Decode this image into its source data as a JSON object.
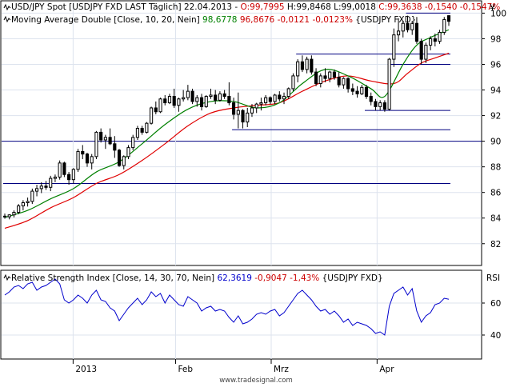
{
  "legend": {
    "main_line1": {
      "prefix": "USD/JPY Spot [USDJPY FXD LAST Täglich] 22.04.2013 - ",
      "open": "O:99,7995",
      "rest": " H:99,8468 L:99,0018 ",
      "close": "C:99,3638 -0,1540 -0,1547%"
    },
    "main_line2": {
      "name": "Moving Average Double [Close, 10, 20, Nein] ",
      "ma_fast": "98,6778",
      "ma_slow": "96,8676",
      "change": "-0,0121 -0,0123%",
      "suffix": " {USDJPY FXD}"
    },
    "rsi": {
      "name": "Relative Strength Index [Close, 14, 30, 70, Nein] ",
      "value": "62,3619",
      "change": "-0,9047 -1,43%",
      "suffix": " {USDJPY FXD}"
    }
  },
  "panel_labels": {
    "currency": "¥",
    "rsi": "RSI"
  },
  "watermark": "www.tradesignal.com",
  "colors": {
    "candle": "#000000",
    "ma_fast": "#008000",
    "ma_slow": "#e00000",
    "rsi": "#0000cc",
    "support_lines": "#000080",
    "grid_dark": "#000080",
    "grid": "#dde3ee",
    "legend_red": "#cc0000",
    "legend_green": "#008000"
  },
  "chart_data": [
    {
      "type": "candlestick",
      "title": "USD/JPY Spot [USDJPY FXD LAST Täglich] 22.04.2013",
      "axis_label": "¥",
      "xlim": [
        "2012-12-13",
        "2013-04-22"
      ],
      "x_ticks": [
        {
          "label": "2013",
          "date": "2013-01-02"
        },
        {
          "label": "Feb",
          "date": "2013-02-01"
        },
        {
          "label": "Mrz",
          "date": "2013-03-01"
        },
        {
          "label": "Apr",
          "date": "2013-04-01"
        }
      ],
      "ylim": [
        80.3,
        100.9
      ],
      "y_ticks": [
        82,
        84,
        86,
        88,
        90,
        92,
        94,
        96,
        98,
        100
      ],
      "grid": true,
      "emphasized_gridline": 90,
      "ohlc": [
        [
          84.15,
          84.35,
          83.95,
          84.1
        ],
        [
          84.1,
          84.3,
          83.9,
          84.25
        ],
        [
          84.25,
          84.6,
          84.05,
          84.45
        ],
        [
          84.45,
          85.1,
          84.3,
          84.95
        ],
        [
          84.95,
          85.4,
          84.6,
          85.2
        ],
        [
          85.2,
          85.6,
          84.9,
          85.3
        ],
        [
          85.3,
          86.3,
          85.1,
          86.1
        ],
        [
          86.1,
          86.6,
          85.7,
          86.3
        ],
        [
          86.3,
          86.8,
          85.95,
          86.5
        ],
        [
          86.5,
          86.9,
          86.2,
          86.4
        ],
        [
          86.4,
          87.3,
          86.1,
          87.1
        ],
        [
          87.1,
          87.4,
          86.8,
          87.2
        ],
        [
          87.2,
          88.5,
          87.0,
          88.3
        ],
        [
          88.3,
          88.4,
          87.2,
          87.4
        ],
        [
          87.4,
          87.6,
          86.6,
          87.0
        ],
        [
          87.0,
          87.9,
          86.7,
          87.8
        ],
        [
          87.8,
          89.4,
          87.6,
          89.2
        ],
        [
          89.2,
          89.7,
          88.6,
          89.0
        ],
        [
          89.0,
          89.1,
          88.0,
          88.3
        ],
        [
          88.3,
          89.0,
          87.8,
          88.8
        ],
        [
          88.8,
          90.8,
          88.6,
          90.7
        ],
        [
          90.7,
          91.0,
          89.9,
          90.1
        ],
        [
          90.1,
          90.5,
          89.4,
          90.3
        ],
        [
          90.3,
          91.0,
          89.7,
          89.8
        ],
        [
          89.8,
          90.4,
          88.7,
          89.3
        ],
        [
          89.3,
          89.4,
          88.0,
          88.1
        ],
        [
          88.1,
          88.9,
          87.8,
          88.8
        ],
        [
          88.8,
          89.7,
          88.6,
          89.5
        ],
        [
          89.5,
          90.5,
          89.3,
          90.3
        ],
        [
          90.3,
          91.2,
          90.1,
          91.0
        ],
        [
          91.0,
          91.2,
          90.5,
          90.7
        ],
        [
          90.7,
          91.5,
          90.6,
          91.4
        ],
        [
          91.4,
          92.7,
          91.3,
          92.6
        ],
        [
          92.6,
          93.1,
          92.1,
          92.3
        ],
        [
          92.3,
          93.4,
          92.2,
          93.3
        ],
        [
          93.3,
          93.6,
          92.8,
          93.0
        ],
        [
          93.0,
          93.7,
          92.9,
          93.5
        ],
        [
          93.5,
          94.1,
          92.6,
          92.8
        ],
        [
          92.8,
          93.4,
          92.3,
          93.3
        ],
        [
          93.3,
          94.0,
          93.1,
          93.4
        ],
        [
          93.4,
          94.4,
          93.2,
          93.9
        ],
        [
          93.9,
          94.1,
          92.9,
          93.1
        ],
        [
          93.1,
          93.6,
          92.7,
          93.4
        ],
        [
          93.4,
          93.7,
          92.4,
          92.7
        ],
        [
          92.7,
          93.6,
          92.6,
          93.5
        ],
        [
          93.5,
          94.1,
          93.3,
          93.6
        ],
        [
          93.6,
          94.0,
          92.9,
          93.2
        ],
        [
          93.2,
          93.9,
          93.1,
          93.7
        ],
        [
          93.7,
          94.0,
          93.3,
          93.5
        ],
        [
          93.5,
          94.6,
          92.8,
          93.0
        ],
        [
          93.0,
          93.4,
          91.7,
          92.1
        ],
        [
          92.1,
          93.8,
          91.0,
          92.4
        ],
        [
          92.4,
          92.5,
          91.0,
          91.5
        ],
        [
          91.5,
          92.6,
          91.1,
          92.2
        ],
        [
          92.2,
          92.9,
          91.9,
          92.6
        ],
        [
          92.6,
          93.0,
          92.2,
          92.9
        ],
        [
          92.9,
          93.4,
          92.4,
          93.0
        ],
        [
          93.0,
          93.6,
          92.8,
          93.4
        ],
        [
          93.4,
          93.5,
          92.9,
          93.1
        ],
        [
          93.1,
          93.7,
          92.9,
          93.6
        ],
        [
          93.6,
          93.9,
          93.1,
          93.3
        ],
        [
          93.3,
          93.8,
          92.9,
          93.5
        ],
        [
          93.5,
          94.2,
          93.3,
          94.1
        ],
        [
          94.1,
          95.3,
          93.9,
          95.1
        ],
        [
          95.1,
          96.4,
          94.6,
          96.2
        ],
        [
          96.2,
          96.7,
          95.4,
          95.6
        ],
        [
          95.6,
          96.6,
          95.3,
          96.4
        ],
        [
          96.4,
          96.7,
          95.2,
          95.4
        ],
        [
          95.4,
          95.7,
          94.3,
          94.5
        ],
        [
          94.5,
          95.3,
          94.2,
          95.1
        ],
        [
          95.1,
          95.7,
          94.6,
          94.9
        ],
        [
          94.9,
          95.5,
          94.6,
          95.4
        ],
        [
          95.4,
          95.6,
          94.8,
          95.0
        ],
        [
          95.0,
          95.4,
          94.2,
          94.4
        ],
        [
          94.4,
          95.0,
          94.1,
          94.9
        ],
        [
          94.9,
          95.0,
          93.8,
          94.1
        ],
        [
          94.1,
          94.5,
          93.6,
          93.9
        ],
        [
          93.9,
          94.3,
          93.4,
          93.7
        ],
        [
          93.7,
          94.4,
          93.6,
          94.2
        ],
        [
          94.2,
          94.4,
          93.3,
          93.5
        ],
        [
          93.5,
          93.8,
          92.8,
          93.1
        ],
        [
          93.1,
          93.3,
          92.4,
          92.7
        ],
        [
          92.7,
          93.2,
          92.4,
          93.0
        ],
        [
          93.0,
          93.2,
          92.3,
          92.5
        ],
        [
          92.5,
          96.5,
          92.4,
          96.4
        ],
        [
          96.4,
          98.8,
          95.8,
          98.3
        ],
        [
          98.3,
          99.6,
          97.8,
          98.6
        ],
        [
          98.6,
          99.4,
          98.1,
          99.2
        ],
        [
          99.2,
          99.8,
          98.5,
          98.7
        ],
        [
          98.7,
          99.4,
          98.3,
          99.2
        ],
        [
          99.2,
          99.7,
          97.6,
          97.8
        ],
        [
          97.8,
          98.0,
          96.0,
          96.4
        ],
        [
          96.4,
          97.7,
          96.1,
          97.5
        ],
        [
          97.5,
          98.2,
          97.1,
          98.0
        ],
        [
          98.0,
          98.4,
          97.4,
          97.8
        ],
        [
          97.8,
          98.7,
          97.6,
          98.5
        ],
        [
          98.5,
          99.7,
          98.3,
          99.5
        ],
        [
          99.8,
          99.85,
          99.0,
          99.36
        ]
      ],
      "ma10": [
        [
          0,
          84.05
        ],
        [
          5,
          84.6
        ],
        [
          10,
          85.5
        ],
        [
          15,
          86.3
        ],
        [
          20,
          87.6
        ],
        [
          25,
          88.4
        ],
        [
          30,
          89.8
        ],
        [
          35,
          91.3
        ],
        [
          40,
          92.5
        ],
        [
          45,
          93.1
        ],
        [
          50,
          93.1
        ],
        [
          55,
          92.6
        ],
        [
          60,
          93.0
        ],
        [
          65,
          94.5
        ],
        [
          70,
          95.6
        ],
        [
          75,
          95.1
        ],
        [
          80,
          94.1
        ],
        [
          83,
          93.5
        ],
        [
          87,
          96.0
        ],
        [
          90,
          97.5
        ],
        [
          93,
          98.1
        ],
        [
          97,
          98.7
        ]
      ],
      "ma20": [
        [
          0,
          83.2
        ],
        [
          5,
          83.8
        ],
        [
          10,
          84.8
        ],
        [
          15,
          85.6
        ],
        [
          20,
          86.7
        ],
        [
          25,
          87.4
        ],
        [
          30,
          88.5
        ],
        [
          35,
          89.8
        ],
        [
          40,
          91.2
        ],
        [
          45,
          92.2
        ],
        [
          50,
          92.6
        ],
        [
          55,
          92.8
        ],
        [
          60,
          93.0
        ],
        [
          65,
          93.9
        ],
        [
          70,
          94.7
        ],
        [
          75,
          95.1
        ],
        [
          80,
          94.7
        ],
        [
          85,
          94.5
        ],
        [
          88,
          95.3
        ],
        [
          91,
          96.1
        ],
        [
          94,
          96.5
        ],
        [
          97,
          96.87
        ]
      ],
      "support_lines": [
        {
          "value": 100.0,
          "from": 88,
          "to": 97
        },
        {
          "value": 96.8,
          "from": 64,
          "to": 97
        },
        {
          "value": 96.0,
          "from": 84,
          "to": 97
        },
        {
          "value": 92.4,
          "from": 79,
          "to": 97
        },
        {
          "value": 90.9,
          "from": 50,
          "to": 97
        },
        {
          "value": 86.7,
          "from": 0,
          "to": 97
        }
      ],
      "legend": [
        "Moving Average Double [Close, 10, 20, Nein] 98,6778 96,8676 -0,0121 -0,0123%"
      ]
    },
    {
      "type": "line",
      "title": "Relative Strength Index [Close, 14, 30, 70, Nein]",
      "axis_label": "RSI",
      "ylim": [
        25,
        80
      ],
      "y_ticks": [
        40,
        60
      ],
      "grid": true,
      "series": [
        {
          "name": "Relative Strength Index",
          "values": [
            65,
            67,
            70,
            71,
            69,
            72,
            73,
            68,
            70,
            71,
            73,
            75,
            72,
            62,
            60,
            62,
            65,
            63,
            60,
            65,
            68,
            62,
            61,
            57,
            55,
            49,
            53,
            57,
            60,
            63,
            59,
            62,
            67,
            64,
            66,
            60,
            65,
            62,
            59,
            58,
            64,
            62,
            60,
            55,
            57,
            58,
            55,
            56,
            55,
            51,
            48,
            52,
            47,
            48,
            50,
            53,
            54,
            53,
            55,
            56,
            52,
            54,
            58,
            62,
            66,
            68,
            65,
            62,
            58,
            55,
            56,
            53,
            55,
            52,
            48,
            50,
            46,
            48,
            47,
            46,
            44,
            41,
            42,
            40,
            58,
            66,
            68,
            70,
            65,
            69,
            55,
            48,
            52,
            54,
            59,
            60,
            63,
            62.36
          ]
        }
      ]
    }
  ]
}
